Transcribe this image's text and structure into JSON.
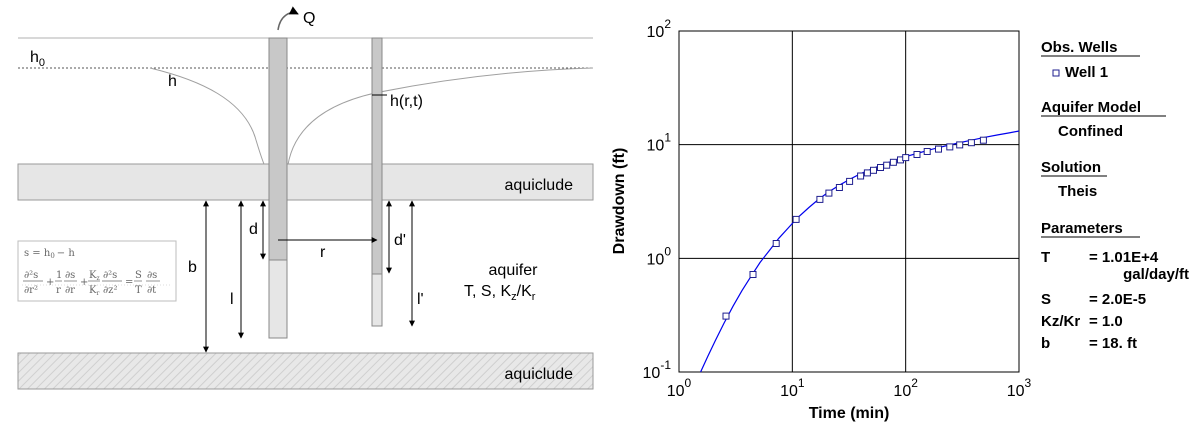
{
  "schematic": {
    "h0_label": "h",
    "h0_sub": "0",
    "h_label": "h",
    "hrt_label": "h(r,t)",
    "q_label": "Q",
    "aquiclude_top": "aquiclude",
    "aquiclude_bottom": "aquiclude",
    "d_label": "d",
    "dprime_label": "d'",
    "r_label": "r",
    "b_label": "b",
    "l_label": "l",
    "lprime_label": "l'",
    "aquifer_label": "aquifer",
    "aquifer_params": "T, S, K",
    "kz_sub": "z",
    "kr_sub": "r",
    "slash": "/K",
    "eq1": "s = h",
    "eq1_sub": "0",
    "eq1_tail": "− h",
    "eq2_d2s": "∂²s",
    "eq2_dr2": "∂r²",
    "eq2_plus1": "+",
    "eq2_one": "1",
    "eq2_r": "r",
    "eq2_ds": "∂s",
    "eq2_dr": "∂r",
    "eq2_plus2": "+",
    "eq2_kz": "K",
    "eq2_kz_sub": "z",
    "eq2_kr": "K",
    "eq2_kr_sub": "r",
    "eq2_d2s_b": "∂²s",
    "eq2_dz2": "∂z²",
    "eq2_eq": "=",
    "eq2_S": "S",
    "eq2_T": "T",
    "eq2_ds_b": "∂s",
    "eq2_dt": "∂t"
  },
  "chart_data": {
    "type": "scatter",
    "xlabel": "Time (min)",
    "ylabel": "Drawdown (ft)",
    "x_scale": "log",
    "y_scale": "log",
    "xlim": [
      1,
      1000
    ],
    "ylim": [
      0.1,
      100
    ],
    "grid": true,
    "x_ticks": [
      {
        "base": "10",
        "exp": "0"
      },
      {
        "base": "10",
        "exp": "1"
      },
      {
        "base": "10",
        "exp": "2"
      },
      {
        "base": "10",
        "exp": "3"
      }
    ],
    "y_ticks": [
      {
        "base": "10",
        "exp": "-1"
      },
      {
        "base": "10",
        "exp": "0"
      },
      {
        "base": "10",
        "exp": "1"
      },
      {
        "base": "10",
        "exp": "2"
      }
    ],
    "series": [
      {
        "name": "Well 1",
        "marker": "square",
        "color": "#1f1f8f",
        "x": [
          2.6,
          4.5,
          7.2,
          10.8,
          17.5,
          21,
          26,
          32,
          40,
          46,
          52,
          60,
          68,
          78,
          90,
          100,
          126,
          155,
          195,
          245,
          300,
          380,
          485
        ],
        "y": [
          0.31,
          0.72,
          1.35,
          2.2,
          3.3,
          3.75,
          4.2,
          4.75,
          5.3,
          5.65,
          5.95,
          6.3,
          6.6,
          7.0,
          7.35,
          7.7,
          8.2,
          8.7,
          9.15,
          9.55,
          9.95,
          10.4,
          10.95
        ]
      }
    ],
    "fit_curve": {
      "name": "Theis",
      "color": "#0000ee",
      "x": [
        1.55,
        1.8,
        2.1,
        2.5,
        3,
        3.6,
        4.3,
        5.2,
        6.3,
        7.6,
        9.2,
        11,
        14,
        17,
        21,
        26,
        32,
        40,
        50,
        63,
        80,
        100,
        130,
        170,
        220,
        290,
        380,
        500,
        650,
        820,
        1000
      ],
      "y": [
        0.1,
        0.138,
        0.19,
        0.27,
        0.38,
        0.52,
        0.69,
        0.92,
        1.18,
        1.5,
        1.85,
        2.25,
        2.8,
        3.3,
        3.85,
        4.4,
        4.95,
        5.55,
        6.1,
        6.7,
        7.3,
        7.85,
        8.45,
        9.1,
        9.7,
        10.35,
        10.95,
        11.6,
        12.2,
        12.7,
        13.2
      ]
    }
  },
  "legend": {
    "obs_wells_title": "Obs. Wells",
    "well1": "Well 1",
    "aquifer_model_title": "Aquifer Model",
    "aquifer_model_value": "Confined",
    "solution_title": "Solution",
    "solution_value": "Theis",
    "parameters_title": "Parameters",
    "params": [
      {
        "name": "T",
        "value": "= 1.01E+4",
        "unit": "gal/day/ft"
      },
      {
        "name": "S",
        "value": "= 2.0E-5"
      },
      {
        "name": "Kz/Kr",
        "value": "= 1.0"
      },
      {
        "name": "b",
        "value": "= 18. ft"
      }
    ],
    "colors": {
      "marker": "#1f1f8f",
      "curve": "#0000ee"
    }
  }
}
